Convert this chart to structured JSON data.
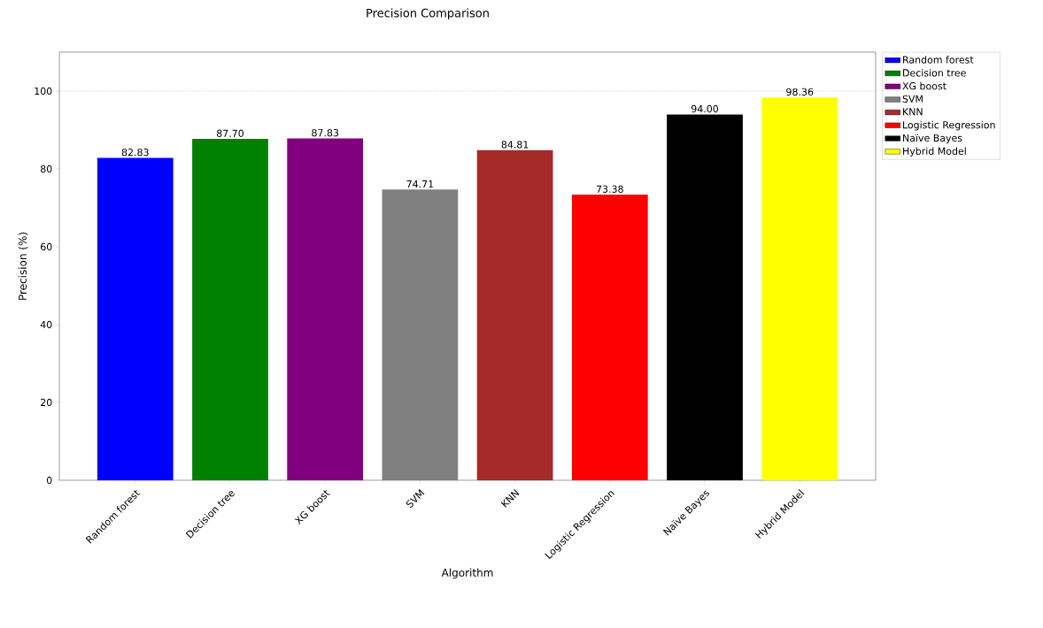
{
  "chart_data": {
    "type": "bar",
    "title": "Precision Comparison",
    "xlabel": "Algorithm",
    "ylabel": "Precision (%)",
    "categories": [
      "Random forest",
      "Decision tree",
      "XG boost",
      "SVM",
      "KNN",
      "Logistic Regression",
      "Naïve Bayes",
      "Hybrid Model"
    ],
    "series": [
      {
        "name": "Random forest",
        "color": "#0000ff",
        "values": [
          82.83,
          null,
          null,
          null,
          null,
          null,
          null,
          null
        ],
        "value_labels": [
          "82.83",
          null,
          null,
          null,
          null,
          null,
          null,
          null
        ]
      },
      {
        "name": "Decision tree",
        "color": "#008000",
        "values": [
          null,
          87.7,
          null,
          null,
          null,
          null,
          null,
          null
        ],
        "value_labels": [
          null,
          "87.70",
          null,
          null,
          null,
          null,
          null,
          null
        ]
      },
      {
        "name": "XG boost",
        "color": "#800080",
        "values": [
          null,
          null,
          87.83,
          null,
          null,
          null,
          null,
          null
        ],
        "value_labels": [
          null,
          null,
          "87.83",
          null,
          null,
          null,
          null,
          null
        ]
      },
      {
        "name": "SVM",
        "color": "#808080",
        "values": [
          null,
          null,
          null,
          74.71,
          null,
          null,
          null,
          null
        ],
        "value_labels": [
          null,
          null,
          null,
          "74.71",
          null,
          null,
          null,
          null
        ]
      },
      {
        "name": "KNN",
        "color": "#a52a2a",
        "values": [
          null,
          null,
          null,
          null,
          84.81,
          null,
          null,
          null
        ],
        "value_labels": [
          null,
          null,
          null,
          null,
          "84.81",
          null,
          null,
          null
        ]
      },
      {
        "name": "Logistic Regression",
        "color": "#ff0000",
        "values": [
          null,
          null,
          null,
          null,
          null,
          73.38,
          null,
          null
        ],
        "value_labels": [
          null,
          null,
          null,
          null,
          null,
          "73.38",
          null,
          null
        ]
      },
      {
        "name": "Naïve Bayes",
        "color": "#000000",
        "values": [
          null,
          null,
          null,
          null,
          null,
          null,
          94.0,
          null
        ],
        "value_labels": [
          null,
          null,
          null,
          null,
          null,
          null,
          "94.00",
          null
        ]
      },
      {
        "name": "Hybrid Model",
        "color": "#ffff00",
        "values": [
          null,
          null,
          null,
          null,
          null,
          null,
          null,
          98.36
        ],
        "value_labels": [
          null,
          null,
          null,
          null,
          null,
          null,
          null,
          "98.36"
        ]
      }
    ],
    "ylim": [
      0,
      110
    ],
    "yticks": [
      0,
      20,
      40,
      60,
      80,
      100
    ],
    "ref_lines": [
      {
        "axis": "y",
        "value": 100,
        "color": "#808080",
        "line_style": "dotted"
      }
    ],
    "legend": "right"
  }
}
